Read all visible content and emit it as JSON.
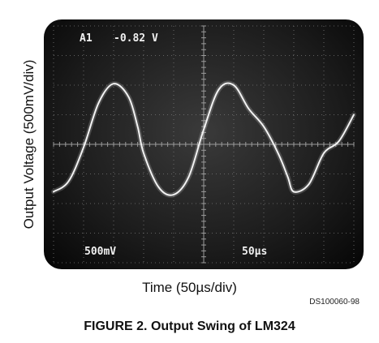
{
  "chart_data": {
    "type": "line",
    "xlabel": "Time (50µs/div)",
    "ylabel": "Output Voltage (500mV/div)",
    "caption": "FIGURE 2. Output Swing of LM324",
    "figure_code": "DS100060-98",
    "scope_readouts": {
      "channel": "A1",
      "level": "-0.82 V",
      "vertical_scale": "500mV",
      "horizontal_scale": "50µs"
    },
    "grid": true,
    "divisions": {
      "x": 10,
      "y": 8
    },
    "x_unit": "div",
    "y_unit": "div",
    "series": [
      {
        "x": [
          0.0,
          0.5,
          1.0,
          1.5,
          2.0,
          2.5,
          2.8,
          3.0,
          3.5,
          4.0,
          4.5,
          5.0,
          5.5,
          6.0,
          6.5,
          7.0,
          7.5,
          7.8,
          8.0,
          8.5,
          9.0,
          9.5,
          10.0
        ],
        "y": [
          -1.6,
          -1.25,
          -0.1,
          1.4,
          2.05,
          1.6,
          0.6,
          -0.3,
          -1.45,
          -1.7,
          -1.1,
          0.5,
          1.85,
          2.0,
          1.2,
          0.6,
          -0.35,
          -1.1,
          -1.6,
          -1.35,
          -0.3,
          0.1,
          1.0
        ]
      }
    ]
  }
}
